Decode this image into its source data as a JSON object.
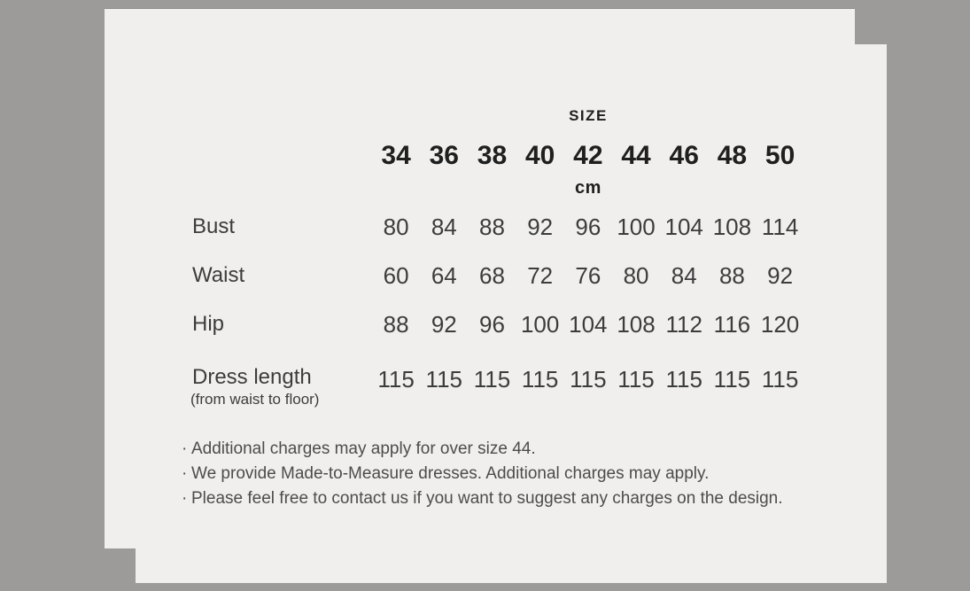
{
  "colors": {
    "background": "#9c9b99",
    "card": "#f0efee",
    "heading_text": "#1f1f1f",
    "body_text": "#3c3c3c",
    "note_text": "#4c4c4c"
  },
  "chart_data": {
    "type": "table",
    "title": "SIZE",
    "unit": "cm",
    "columns": [
      "34",
      "36",
      "38",
      "40",
      "42",
      "44",
      "46",
      "48",
      "50"
    ],
    "rows": [
      {
        "label": "Bust",
        "sublabel": "",
        "values": [
          80,
          84,
          88,
          92,
          96,
          100,
          104,
          108,
          114
        ]
      },
      {
        "label": "Waist",
        "sublabel": "",
        "values": [
          60,
          64,
          68,
          72,
          76,
          80,
          84,
          88,
          92
        ]
      },
      {
        "label": "Hip",
        "sublabel": "",
        "values": [
          88,
          92,
          96,
          100,
          104,
          108,
          112,
          116,
          120
        ]
      },
      {
        "label": "Dress length",
        "sublabel": "(from waist to floor)",
        "values": [
          115,
          115,
          115,
          115,
          115,
          115,
          115,
          115,
          115
        ]
      }
    ],
    "note_bullet": "·",
    "notes": [
      "Additional charges may apply for over size 44.",
      "We provide Made-to-Measure dresses. Additional charges may apply.",
      "Please feel free to contact us if you want to suggest any charges on the design."
    ]
  }
}
